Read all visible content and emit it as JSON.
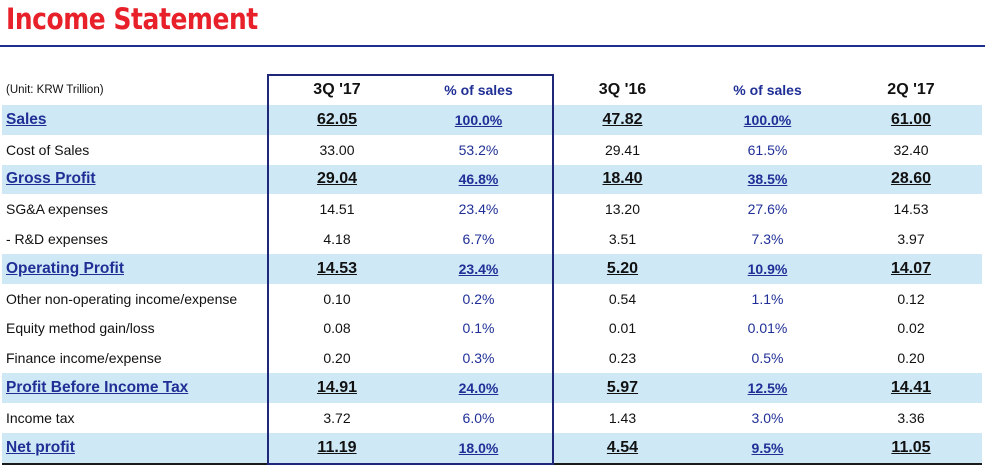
{
  "title": "Income Statement",
  "table": {
    "unit_label": "(Unit: KRW Trillion)",
    "headers": [
      "3Q '17",
      "% of sales",
      "3Q '16",
      "% of sales",
      "2Q '17"
    ],
    "rows": [
      {
        "label": "Sales",
        "values": [
          "62.05",
          "100.0%",
          "47.82",
          "100.0%",
          "61.00"
        ],
        "highlight": true
      },
      {
        "label": "Cost of Sales",
        "values": [
          "33.00",
          "53.2%",
          "29.41",
          "61.5%",
          "32.40"
        ],
        "highlight": false
      },
      {
        "label": "Gross Profit",
        "values": [
          "29.04",
          "46.8%",
          "18.40",
          "38.5%",
          "28.60"
        ],
        "highlight": true
      },
      {
        "label": "SG&A expenses",
        "values": [
          "14.51",
          "23.4%",
          "13.20",
          "27.6%",
          "14.53"
        ],
        "highlight": false
      },
      {
        "label": " - R&D expenses",
        "values": [
          "4.18",
          "6.7%",
          "3.51",
          "7.3%",
          "3.97"
        ],
        "highlight": false
      },
      {
        "label": "Operating Profit",
        "values": [
          "14.53",
          "23.4%",
          "5.20",
          "10.9%",
          "14.07"
        ],
        "highlight": true
      },
      {
        "label": "Other non-operating income/expense",
        "values": [
          "0.10",
          "0.2%",
          "0.54",
          "1.1%",
          "0.12"
        ],
        "highlight": false
      },
      {
        "label": "Equity method gain/loss",
        "values": [
          "0.08",
          "0.1%",
          "0.01",
          "0.01%",
          "0.02"
        ],
        "highlight": false
      },
      {
        "label": "Finance income/expense",
        "values": [
          "0.20",
          "0.3%",
          "0.23",
          "0.5%",
          "0.20"
        ],
        "highlight": false
      },
      {
        "label": "Profit Before Income Tax",
        "values": [
          "14.91",
          "24.0%",
          "5.97",
          "12.5%",
          "14.41"
        ],
        "highlight": true
      },
      {
        "label": "Income tax",
        "values": [
          "3.72",
          "6.0%",
          "1.43",
          "3.0%",
          "3.36"
        ],
        "highlight": false
      },
      {
        "label": "Net profit",
        "values": [
          "11.19",
          "18.0%",
          "4.54",
          "9.5%",
          "11.05"
        ],
        "highlight": true
      }
    ]
  },
  "colors": {
    "title": "#e8202a",
    "accent_blue": "#1f2f96",
    "row_highlight": "#cfe8f6",
    "box_border": "#1f2878"
  }
}
